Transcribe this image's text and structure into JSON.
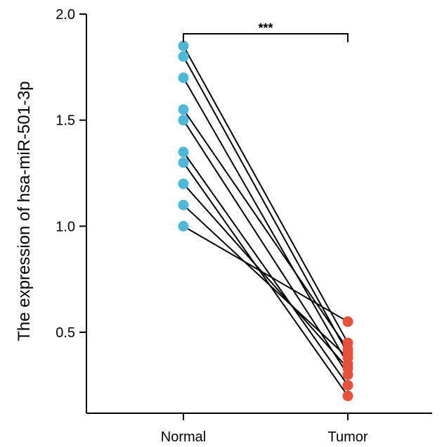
{
  "chart_data": {
    "type": "line",
    "title": "",
    "ylabel": "The expression of hsa-miR-501-3p",
    "xlabel": "",
    "categories": [
      "Normal",
      "Tumor"
    ],
    "ylim": [
      0.12,
      2.0
    ],
    "yticks": [
      0.5,
      1.0,
      1.5,
      2.0
    ],
    "ytick_labels": [
      "0.5",
      "1.0",
      "1.5",
      "2.0"
    ],
    "significance": "***",
    "colors": {
      "Normal": "#4DB8D8",
      "Tumor": "#E8503A",
      "line": "#000000"
    },
    "pairs": [
      {
        "normal": 1.85,
        "tumor": 0.45
      },
      {
        "normal": 1.8,
        "tumor": 0.4
      },
      {
        "normal": 1.7,
        "tumor": 0.35
      },
      {
        "normal": 1.55,
        "tumor": 0.42
      },
      {
        "normal": 1.5,
        "tumor": 0.3
      },
      {
        "normal": 1.35,
        "tumor": 0.25
      },
      {
        "normal": 1.3,
        "tumor": 0.2
      },
      {
        "normal": 1.2,
        "tumor": 0.33
      },
      {
        "normal": 1.1,
        "tumor": 0.38
      },
      {
        "normal": 1.0,
        "tumor": 0.55
      }
    ]
  }
}
